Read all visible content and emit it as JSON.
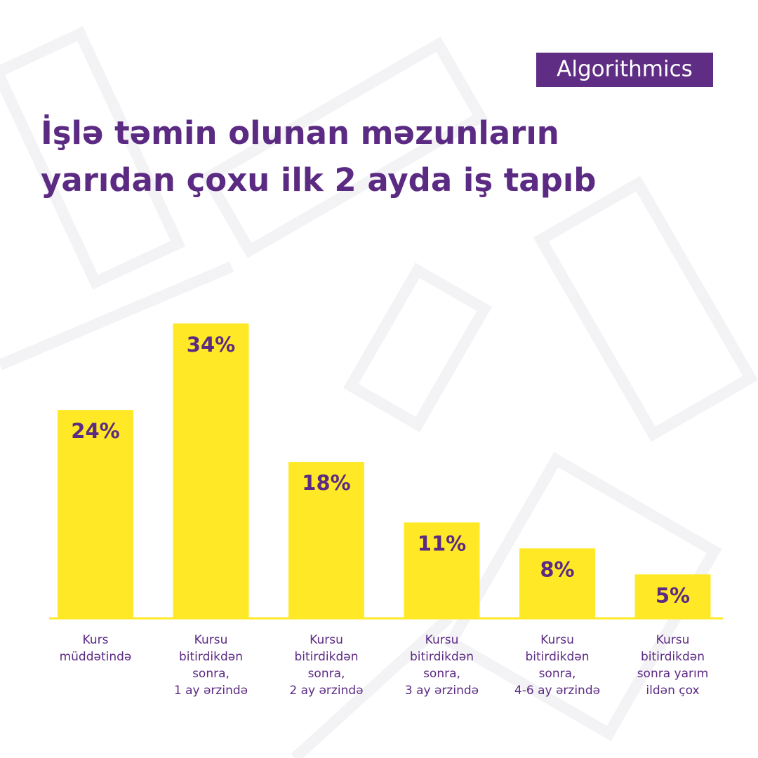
{
  "brand": "Algorithmics",
  "chart_data": {
    "type": "bar",
    "title_lines": [
      "İşlə təmin olunan məzunların",
      "yarıdan çoxu ilk 2 ayda iş tapıb"
    ],
    "categories": [
      [
        "Kurs",
        "müddətində"
      ],
      [
        "Kursu",
        "bitirdikdən",
        "sonra,",
        "1 ay ərzində"
      ],
      [
        "Kursu",
        "bitirdikdən",
        "sonra,",
        "2 ay ərzində"
      ],
      [
        "Kursu",
        "bitirdikdən",
        "sonra,",
        "3 ay ərzində"
      ],
      [
        "Kursu",
        "bitirdikdən",
        "sonra,",
        "4-6 ay ərzində"
      ],
      [
        "Kursu",
        "bitirdikdən",
        "sonra yarım",
        "ildən çox"
      ]
    ],
    "values": [
      24,
      34,
      18,
      11,
      8,
      5
    ],
    "value_labels": [
      "24%",
      "34%",
      "18%",
      "11%",
      "8%",
      "5%"
    ],
    "color": "#ffe926"
  }
}
